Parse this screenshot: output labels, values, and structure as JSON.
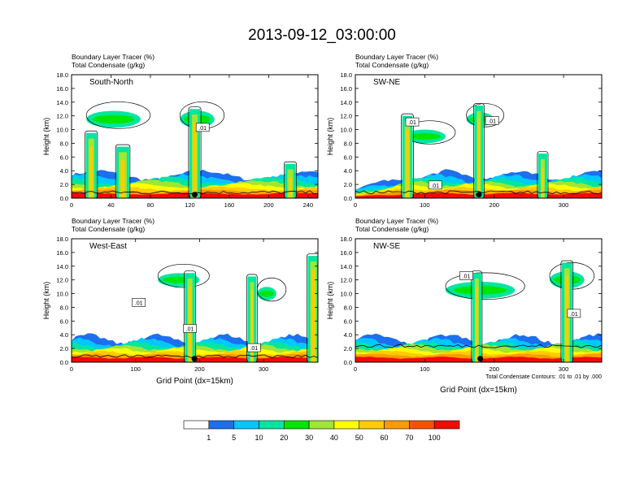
{
  "title": "2013-09-12_03:00:00",
  "colorbar": {
    "colors": [
      "#ffffff",
      "#1e6ef0",
      "#00c8ff",
      "#00e6a0",
      "#00e600",
      "#a0e632",
      "#ffff00",
      "#ffcc00",
      "#ff9900",
      "#ff5000",
      "#f00a0a"
    ],
    "labels": [
      "1",
      "5",
      "10",
      "20",
      "30",
      "40",
      "50",
      "60",
      "70",
      "100"
    ]
  },
  "chart_data": [
    {
      "type": "heatmap",
      "panel_label": "South-North",
      "subtitles": [
        "Boundary Layer Tracer    (%)",
        "Total Condensate    (g/kg)"
      ],
      "ylabel": "Height (km)",
      "xlabel": "",
      "xlim": [
        0,
        250
      ],
      "ylim": [
        0,
        18
      ],
      "xticks": [
        0,
        40,
        80,
        120,
        160,
        200,
        240
      ],
      "yticks": [
        "0.0",
        "2.0",
        "4.0",
        "6.0",
        "8.0",
        "10.0",
        "12.0",
        "14.0",
        "16.0",
        "18.0"
      ],
      "marker_x": 125,
      "contour_labels": [
        {
          "x": 133,
          "y": 10.2,
          "text": ".01"
        }
      ],
      "towers": [
        {
          "x": 20,
          "top": 9.5,
          "w": 6
        },
        {
          "x": 52,
          "top": 7.5,
          "w": 8
        },
        {
          "x": 125,
          "top": 13.0,
          "w": 6
        },
        {
          "x": 222,
          "top": 5.0,
          "w": 6
        }
      ],
      "anvils": [
        {
          "x0": 15,
          "x1": 70,
          "y": 11.5,
          "h": 2.0
        },
        {
          "x0": 110,
          "x1": 145,
          "y": 11.5,
          "h": 2.0
        }
      ]
    },
    {
      "type": "heatmap",
      "panel_label": "SW-NE",
      "subtitles": [
        "Boundary Layer Tracer    (%)",
        "Total Condensate    (g/kg)"
      ],
      "ylabel": "Height (km)",
      "xlabel": "",
      "xlim": [
        0,
        355
      ],
      "ylim": [
        0,
        18
      ],
      "xticks": [
        0,
        100,
        200,
        300
      ],
      "yticks": [
        "0.0",
        "2.0",
        "4.0",
        "6.0",
        "8.0",
        "10.0",
        "12.0",
        "14.0",
        "16.0",
        "18.0"
      ],
      "marker_x": 178,
      "contour_labels": [
        {
          "x": 82,
          "y": 11.0,
          "text": ".01"
        },
        {
          "x": 197,
          "y": 11.2,
          "text": ".01"
        },
        {
          "x": 115,
          "y": 1.8,
          "text": ".01"
        }
      ],
      "towers": [
        {
          "x": 75,
          "top": 12.0,
          "w": 8
        },
        {
          "x": 178,
          "top": 13.5,
          "w": 6
        },
        {
          "x": 270,
          "top": 6.5,
          "w": 6
        }
      ],
      "anvils": [
        {
          "x0": 70,
          "x1": 130,
          "y": 9.0,
          "h": 1.5
        },
        {
          "x0": 160,
          "x1": 200,
          "y": 11.5,
          "h": 1.5
        }
      ]
    },
    {
      "type": "heatmap",
      "panel_label": "West-East",
      "subtitles": [
        "Boundary Layer Tracer    (%)",
        "Total Condensate    (g/kg)"
      ],
      "ylabel": "Height (km)",
      "xlabel": "Grid Point (dx=15km)",
      "xlim": [
        0,
        385
      ],
      "ylim": [
        0,
        18
      ],
      "xticks": [
        0,
        100,
        200,
        300
      ],
      "yticks": [
        "0.0",
        "2.0",
        "4.0",
        "6.0",
        "8.0",
        "10.0",
        "12.0",
        "14.0",
        "16.0",
        "18.0"
      ],
      "marker_x": 192,
      "contour_labels": [
        {
          "x": 105,
          "y": 8.6,
          "text": ".01"
        },
        {
          "x": 185,
          "y": 4.8,
          "text": ".01"
        },
        {
          "x": 285,
          "y": 2.0,
          "text": ".01"
        }
      ],
      "towers": [
        {
          "x": 185,
          "top": 13.0,
          "w": 8
        },
        {
          "x": 282,
          "top": 12.5,
          "w": 6
        },
        {
          "x": 378,
          "top": 15.5,
          "w": 10
        }
      ],
      "anvils": [
        {
          "x0": 135,
          "x1": 200,
          "y": 12.0,
          "h": 1.5
        },
        {
          "x0": 290,
          "x1": 320,
          "y": 10.0,
          "h": 1.5
        }
      ]
    },
    {
      "type": "heatmap",
      "panel_label": "NW-SE",
      "subtitles": [
        "Boundary Layer Tracer    (%)",
        "Total Condensate    (g/kg)"
      ],
      "ylabel": "Height (km)",
      "xlabel": "Grid Point (dx=15km)",
      "xlim": [
        0,
        355
      ],
      "ylim": [
        0,
        18
      ],
      "xticks": [
        0,
        100,
        200,
        300
      ],
      "yticks": [
        "0.0",
        "2.0",
        "4.0",
        "6.0",
        "8.0",
        "10.0",
        "12.0",
        "14.0",
        "16.0",
        "18.0"
      ],
      "marker_x": 180,
      "contour_labels": [
        {
          "x": 160,
          "y": 12.5,
          "text": ".01"
        },
        {
          "x": 315,
          "y": 7.0,
          "text": ".01"
        }
      ],
      "towers": [
        {
          "x": 175,
          "top": 13.0,
          "w": 6
        },
        {
          "x": 305,
          "top": 14.5,
          "w": 8
        }
      ],
      "anvils": [
        {
          "x0": 130,
          "x1": 230,
          "y": 10.5,
          "h": 2.0
        },
        {
          "x0": 280,
          "x1": 330,
          "y": 12.0,
          "h": 2.0
        }
      ],
      "footnote": "Total Condensate Contours: .01 to .01 by .000"
    }
  ]
}
